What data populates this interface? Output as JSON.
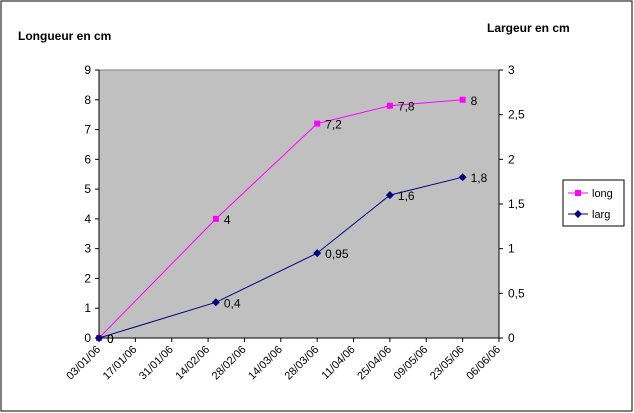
{
  "chart_data": {
    "type": "line",
    "x": [
      "03/01/06",
      "17/01/06",
      "31/01/06",
      "14/02/06",
      "28/02/06",
      "14/03/06",
      "28/03/06",
      "11/04/06",
      "25/04/06",
      "09/05/06",
      "23/05/06",
      "06/06/06"
    ],
    "x_dates": [
      "2006-01-03",
      "2006-01-17",
      "2006-01-31",
      "2006-02-14",
      "2006-02-28",
      "2006-03-14",
      "2006-03-28",
      "2006-04-11",
      "2006-04-25",
      "2006-05-09",
      "2006-05-23",
      "2006-06-06"
    ],
    "ylabel_left": "Longueur en cm",
    "ylabel_right": "Largeur en cm",
    "ylim_left": [
      0,
      9
    ],
    "ylim_right": [
      0,
      3
    ],
    "yticks_left": [
      "0",
      "1",
      "2",
      "3",
      "4",
      "5",
      "6",
      "7",
      "8",
      "9"
    ],
    "yticks_right": [
      "0",
      "0,5",
      "1",
      "1,5",
      "2",
      "2,5",
      "3"
    ],
    "legend_position": "right",
    "plot_background": "#C0C0C0",
    "series": [
      {
        "name": "long",
        "axis": "left",
        "color": "#FF00FF",
        "marker": "square",
        "x": [
          "2006-01-03",
          "2006-02-17",
          "2006-03-28",
          "2006-04-25",
          "2006-05-23"
        ],
        "values": [
          0,
          4,
          7.2,
          7.8,
          8
        ],
        "labels": [
          "0",
          "4",
          "7,2",
          "7,8",
          "8"
        ]
      },
      {
        "name": "larg",
        "axis": "right",
        "color": "#000080",
        "marker": "diamond",
        "x": [
          "2006-01-03",
          "2006-02-17",
          "2006-03-28",
          "2006-04-25",
          "2006-05-23"
        ],
        "values": [
          0,
          0.4,
          0.95,
          1.6,
          1.8
        ],
        "labels": [
          "0",
          "0,4",
          "0,95",
          "1,6",
          "1,8"
        ]
      }
    ]
  }
}
